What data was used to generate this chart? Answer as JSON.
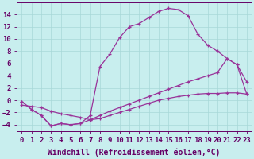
{
  "xlabel": "Windchill (Refroidissement éolien,°C)",
  "line_color": "#993399",
  "bg_color": "#c8eeee",
  "grid_color": "#a8d8d8",
  "ylim": [
    -5.0,
    16.0
  ],
  "yticks": [
    -4,
    -2,
    0,
    2,
    4,
    6,
    8,
    10,
    12,
    14
  ],
  "xticks": [
    0,
    1,
    2,
    3,
    4,
    5,
    6,
    7,
    8,
    9,
    10,
    11,
    12,
    13,
    14,
    15,
    16,
    17,
    18,
    19,
    20,
    21,
    22,
    23
  ],
  "font_color": "#660066",
  "font_size": 6.5,
  "xlabel_fontsize": 7.0,
  "s1x": [
    0,
    1,
    2,
    3,
    4,
    5,
    6,
    7,
    8,
    9,
    10,
    11,
    12,
    13,
    14,
    15,
    16,
    17,
    18,
    19,
    20,
    21,
    22,
    23
  ],
  "s1y": [
    -0.2,
    -1.5,
    -2.5,
    -4.2,
    -3.8,
    -4.0,
    -3.8,
    -3.2,
    -2.5,
    -1.8,
    -1.2,
    -0.6,
    0.0,
    0.6,
    1.2,
    1.8,
    2.4,
    3.0,
    3.5,
    4.0,
    4.5,
    6.8,
    5.8,
    1.0
  ],
  "s2x": [
    0,
    1,
    2,
    3,
    4,
    5,
    6,
    7,
    8,
    9,
    10,
    11,
    12,
    13,
    14,
    15,
    16,
    17,
    18,
    19,
    20,
    21,
    22,
    23
  ],
  "s2y": [
    -0.2,
    -1.5,
    -2.5,
    -4.2,
    -3.8,
    -4.0,
    -3.8,
    -2.5,
    5.5,
    7.5,
    10.2,
    12.0,
    12.5,
    13.5,
    14.5,
    15.0,
    14.8,
    13.8,
    10.8,
    9.0,
    8.0,
    6.8,
    5.8,
    3.0
  ],
  "s3x": [
    0,
    1,
    2,
    3,
    4,
    5,
    6,
    7,
    8,
    9,
    10,
    11,
    12,
    13,
    14,
    15,
    16,
    17,
    18,
    19,
    20,
    21,
    22,
    23
  ],
  "s3y": [
    -0.8,
    -1.0,
    -1.2,
    -1.8,
    -2.2,
    -2.5,
    -2.8,
    -3.2,
    -3.0,
    -2.5,
    -2.0,
    -1.5,
    -1.0,
    -0.5,
    0.0,
    0.3,
    0.6,
    0.8,
    1.0,
    1.1,
    1.1,
    1.2,
    1.2,
    1.0
  ]
}
